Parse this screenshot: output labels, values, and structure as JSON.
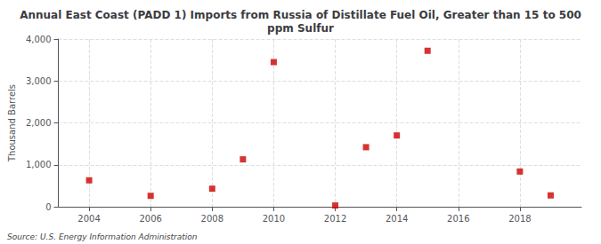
{
  "chart_data": {
    "type": "scatter",
    "title": "Annual East Coast (PADD 1) Imports from Russia of Distillate Fuel Oil, Greater than 15 to 500\nppm Sulfur",
    "ylabel": "Thousand Barrels",
    "source": "Source: U.S. Energy Information Administration",
    "x": [
      2004,
      2006,
      2008,
      2009,
      2010,
      2012,
      2013,
      2014,
      2015,
      2018,
      2019
    ],
    "values": [
      630,
      260,
      430,
      1130,
      3450,
      30,
      1420,
      1700,
      3720,
      840,
      270
    ],
    "color": "#cc0000",
    "marker": "square",
    "xlim": [
      2003,
      2020
    ],
    "xticks": [
      2004,
      2006,
      2008,
      2010,
      2012,
      2014,
      2016,
      2018
    ],
    "ylim": [
      0,
      4000
    ],
    "yticks": [
      0,
      {
        "value": 1000,
        "label": "1,000"
      },
      {
        "value": 2000,
        "label": "2,000"
      },
      {
        "value": 3000,
        "label": "3,000"
      },
      {
        "value": 4000,
        "label": "4,000"
      }
    ],
    "grid": true
  }
}
